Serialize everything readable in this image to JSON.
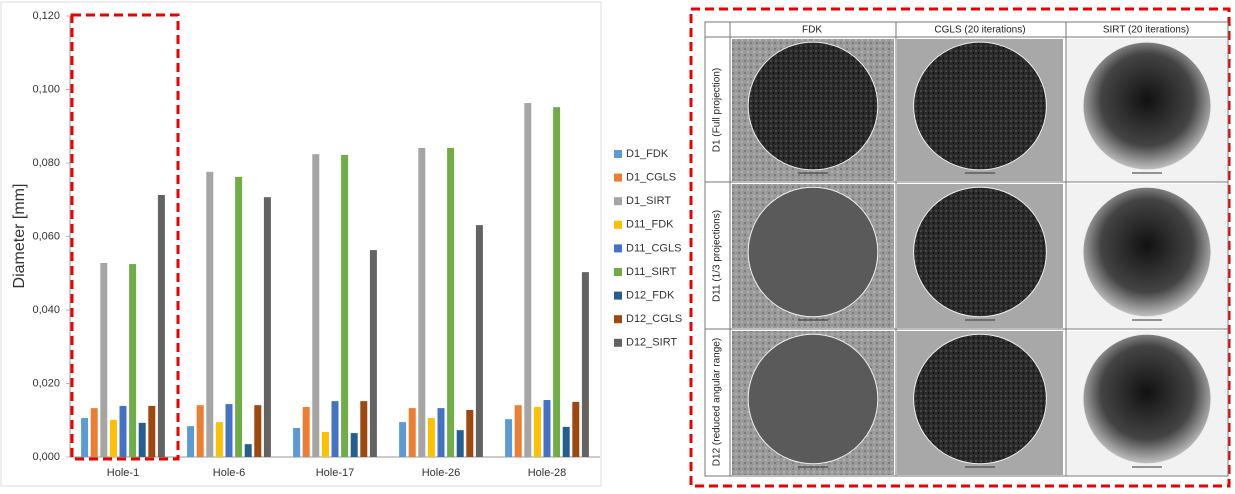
{
  "chart_data": {
    "type": "bar",
    "y_label": "Diameter [mm]",
    "categories": [
      "Hole-1",
      "Hole-6",
      "Hole-17",
      "Hole-26",
      "Hole-28"
    ],
    "series": [
      {
        "name": "D1_FDK",
        "color": "#5b9bd5",
        "values": [
          0.0106,
          0.0084,
          0.0079,
          0.0095,
          0.0103
        ]
      },
      {
        "name": "D1_CGLS",
        "color": "#ed7d31",
        "values": [
          0.0133,
          0.0141,
          0.0136,
          0.0133,
          0.0141
        ]
      },
      {
        "name": "D1_SIRT",
        "color": "#a5a5a5",
        "values": [
          0.0528,
          0.0776,
          0.0824,
          0.0841,
          0.0963
        ]
      },
      {
        "name": "D11_FDK",
        "color": "#ffc000",
        "values": [
          0.0101,
          0.0095,
          0.0068,
          0.0106,
          0.0136
        ]
      },
      {
        "name": "D11_CGLS",
        "color": "#4472c4",
        "values": [
          0.0139,
          0.0144,
          0.0152,
          0.0133,
          0.0155
        ]
      },
      {
        "name": "D11_SIRT",
        "color": "#70ad47",
        "values": [
          0.0525,
          0.0762,
          0.0822,
          0.0841,
          0.0952
        ]
      },
      {
        "name": "D12_FDK",
        "color": "#255e91",
        "values": [
          0.0093,
          0.0035,
          0.0065,
          0.0073,
          0.0082
        ]
      },
      {
        "name": "D12_CGLS",
        "color": "#9e480e",
        "values": [
          0.0139,
          0.0141,
          0.0152,
          0.0128,
          0.015
        ]
      },
      {
        "name": "D12_SIRT",
        "color": "#636363",
        "values": [
          0.0713,
          0.0707,
          0.0563,
          0.0631,
          0.0503
        ]
      }
    ],
    "ylim": [
      0,
      0.12
    ],
    "yticks": [
      {
        "value": 0,
        "label": "0,000"
      },
      {
        "value": 0.02,
        "label": "0,020"
      },
      {
        "value": 0.04,
        "label": "0,040"
      },
      {
        "value": 0.06,
        "label": "0,060"
      },
      {
        "value": 0.08,
        "label": "0,080"
      },
      {
        "value": 0.1,
        "label": "0,100"
      },
      {
        "value": 0.12,
        "label": "0,120"
      }
    ],
    "grid": false,
    "legend": "right"
  },
  "image_grid": {
    "columns": [
      "FDK",
      "CGLS (20 iterations)",
      "SIRT  (20 iterations)"
    ],
    "rows": [
      "D1 (Full projection)",
      "D11 (1/3 projections)",
      "D12 (reduced angular range)"
    ]
  }
}
